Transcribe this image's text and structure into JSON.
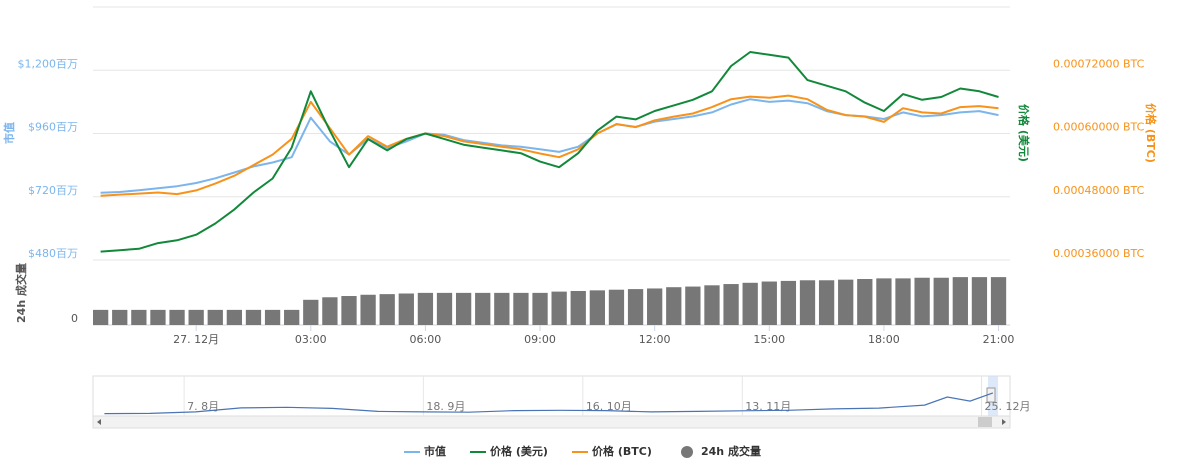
{
  "chart_data": {
    "type": "line",
    "x": [
      -2.5,
      -2,
      -1.5,
      -1,
      -0.5,
      0,
      0.5,
      1,
      1.5,
      2,
      2.5,
      3,
      3.5,
      4,
      4.5,
      5,
      5.5,
      6,
      6.5,
      7,
      7.5,
      8,
      8.5,
      9,
      9.5,
      10,
      10.5,
      11,
      11.5,
      12,
      12.5,
      13,
      13.5,
      14,
      14.5,
      15,
      15.5,
      16,
      16.5,
      17,
      17.5,
      18,
      18.5,
      19,
      19.5,
      20,
      20.5,
      21
    ],
    "xlim": [
      -2.7,
      21.3
    ],
    "xticks": [
      {
        "value": 0,
        "label": "27. 12月"
      },
      {
        "value": 3,
        "label": "03:00"
      },
      {
        "value": 6,
        "label": "06:00"
      },
      {
        "value": 9,
        "label": "09:00"
      },
      {
        "value": 12,
        "label": "12:00"
      },
      {
        "value": 15,
        "label": "15:00"
      },
      {
        "value": 18,
        "label": "18:00"
      },
      {
        "value": 21,
        "label": "21:00"
      }
    ],
    "ylabel": "市值",
    "ylim": [
      480,
      1440
    ],
    "yticks": [
      {
        "value": 480,
        "label": "$480百万"
      },
      {
        "value": 720,
        "label": "$720百万"
      },
      {
        "value": 960,
        "label": "$960百万"
      },
      {
        "value": 1200,
        "label": "$1,200百万"
      }
    ],
    "y2label": "价格 (BTC)",
    "y2lim": [
      0.00036,
      0.00084
    ],
    "y2ticks": [
      {
        "value": 0.00036,
        "label": "0.00036000 BTC"
      },
      {
        "value": 0.00048,
        "label": "0.00048000 BTC"
      },
      {
        "value": 0.0006,
        "label": "0.00060000 BTC"
      },
      {
        "value": 0.00072,
        "label": "0.00072000 BTC"
      }
    ],
    "y3label": "价格 (美元)",
    "y3lim": [
      5,
      14
    ],
    "volume_label": "24h 成交量",
    "volume_ylim": [
      0,
      100
    ],
    "volume_yticks": [
      0
    ],
    "series": [
      {
        "name": "市值",
        "color": "#7cb5ec",
        "axis": "y",
        "values": [
          735,
          738,
          745,
          752,
          760,
          772,
          790,
          812,
          835,
          850,
          870,
          1020,
          930,
          880,
          940,
          905,
          930,
          960,
          955,
          935,
          925,
          915,
          910,
          900,
          890,
          910,
          960,
          995,
          985,
          1005,
          1015,
          1025,
          1040,
          1070,
          1090,
          1080,
          1085,
          1075,
          1045,
          1030,
          1025,
          1015,
          1040,
          1025,
          1030,
          1040,
          1045,
          1030
        ]
      },
      {
        "name": "价格 (BTC)",
        "color": "#f7931a",
        "axis": "y2",
        "values": [
          0.000482,
          0.000484,
          0.000486,
          0.000488,
          0.000485,
          0.000492,
          0.000505,
          0.00052,
          0.00054,
          0.00056,
          0.00059,
          0.00066,
          0.00061,
          0.00056,
          0.000595,
          0.000575,
          0.00059,
          0.0006,
          0.000595,
          0.000585,
          0.00058,
          0.000575,
          0.00057,
          0.000562,
          0.000555,
          0.00057,
          0.0006,
          0.000618,
          0.000612,
          0.000625,
          0.000632,
          0.000638,
          0.00065,
          0.000665,
          0.00067,
          0.000668,
          0.000672,
          0.000665,
          0.000645,
          0.000635,
          0.000632,
          0.000622,
          0.000648,
          0.00064,
          0.000638,
          0.00065,
          0.000652,
          0.000648
        ]
      },
      {
        "name": "价格 (美元)",
        "color": "#12883a",
        "axis": "y3",
        "values": [
          5.3,
          5.35,
          5.4,
          5.6,
          5.7,
          5.9,
          6.3,
          6.8,
          7.4,
          7.9,
          9.0,
          11.0,
          9.6,
          8.3,
          9.3,
          8.9,
          9.3,
          9.5,
          9.3,
          9.1,
          9.0,
          8.9,
          8.8,
          8.5,
          8.3,
          8.8,
          9.6,
          10.1,
          10.0,
          10.3,
          10.5,
          10.7,
          11.0,
          11.9,
          12.4,
          12.3,
          12.2,
          11.4,
          11.2,
          11.0,
          10.6,
          10.3,
          10.9,
          10.7,
          10.8,
          11.1,
          11.0,
          10.8
        ]
      },
      {
        "name": "24h 成交量",
        "color": "#777777",
        "axis": "volume",
        "values": [
          24,
          24,
          24,
          24,
          24,
          24,
          24,
          24,
          24,
          24,
          24,
          40,
          44,
          46,
          48,
          49,
          50,
          51,
          51,
          51,
          51,
          51,
          51,
          51,
          53,
          54,
          55,
          56,
          57,
          58,
          60,
          61,
          63,
          65,
          67,
          69,
          70,
          71,
          71,
          72,
          73,
          74,
          74,
          75,
          75,
          76,
          76,
          76
        ]
      }
    ],
    "legend_order": [
      0,
      2,
      1,
      3
    ],
    "navigator": {
      "x": [
        205,
        213,
        221,
        229,
        237,
        245,
        253,
        261,
        269,
        277,
        285,
        293,
        301,
        309,
        317,
        325,
        333,
        341,
        349,
        353,
        357,
        361
      ],
      "values": [
        90,
        95,
        150,
        300,
        320,
        280,
        170,
        150,
        140,
        200,
        210,
        200,
        150,
        170,
        190,
        210,
        260,
        290,
        400,
        700,
        550,
        850
      ],
      "xlim": [
        203,
        364
      ],
      "ylim": [
        0,
        1400
      ],
      "xticks": [
        {
          "value": 219,
          "label": "7. 8月"
        },
        {
          "value": 261,
          "label": "18. 9月"
        },
        {
          "value": 289,
          "label": "16. 10月"
        },
        {
          "value": 317,
          "label": "13. 11月"
        },
        {
          "value": 359,
          "label": "25. 12月"
        }
      ]
    }
  }
}
